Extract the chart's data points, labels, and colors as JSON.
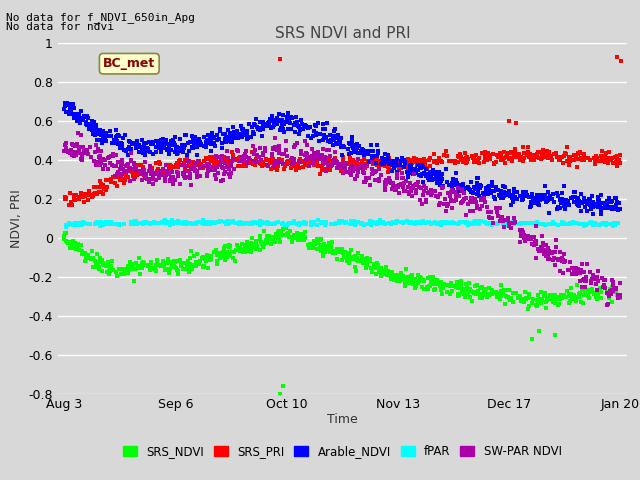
{
  "title": "SRS NDVI and PRI",
  "ylabel": "NDVI, PRI",
  "xlabel": "Time",
  "top_text_line1": "No data for f_NDVI_650in_Apg",
  "top_text_line2": "No data for ndvi",
  "bc_met_label": "BC_met",
  "ylim": [
    -0.8,
    1.0
  ],
  "yticks": [
    -0.8,
    -0.6,
    -0.4,
    -0.2,
    0.0,
    0.2,
    0.4,
    0.6,
    0.8,
    1.0
  ],
  "xtick_labels": [
    "Aug 3",
    "Sep 6",
    "Oct 10",
    "Nov 13",
    "Dec 17",
    "Jan 20"
  ],
  "xtick_pos": [
    0,
    34,
    68,
    102,
    136,
    170
  ],
  "xlim": [
    -2,
    172
  ],
  "legend_entries": [
    {
      "label": "SRS_NDVI",
      "color": "#00FF00"
    },
    {
      "label": "SRS_PRI",
      "color": "#FF0000"
    },
    {
      "label": "Arable_NDVI",
      "color": "#0000FF"
    },
    {
      "label": "fPAR",
      "color": "#00FFFF"
    },
    {
      "label": "SW-PAR NDVI",
      "color": "#AA00AA"
    }
  ],
  "fig_bg_color": "#D8D8D8",
  "plot_bg_color": "#D8D8D8",
  "grid_color": "#FFFFFF",
  "title_color": "#444444",
  "text_color": "#333333",
  "series_colors": {
    "srs_ndvi": "#00FF00",
    "srs_pri": "#FF0000",
    "arable_ndvi": "#0000FF",
    "fpar": "#00FFFF",
    "sw_par_ndvi": "#AA00AA"
  },
  "marker_size": 3.0,
  "figsize": [
    6.4,
    4.8
  ],
  "dpi": 100
}
